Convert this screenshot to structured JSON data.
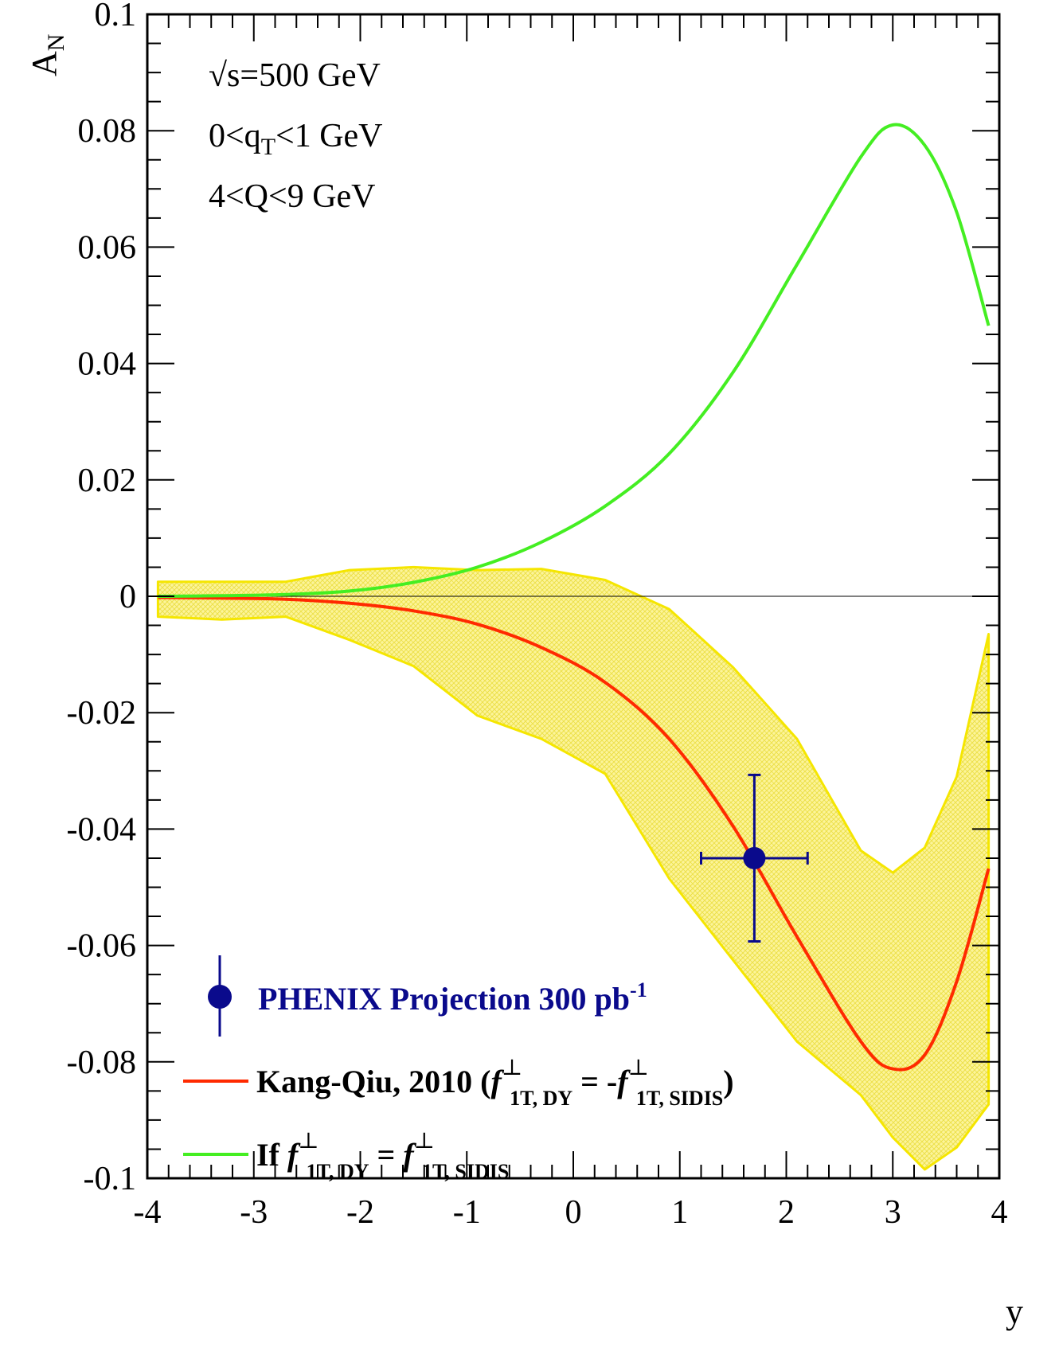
{
  "chart_data": {
    "type": "line",
    "xlabel": "y",
    "ylabel": "A",
    "ylabel_sub": "N",
    "xlim": [
      -4,
      4
    ],
    "ylim": [
      -0.1,
      0.1
    ],
    "x_ticks": [
      -4,
      -3,
      -2,
      -1,
      0,
      1,
      2,
      3,
      4
    ],
    "x_tick_labels": [
      "-4",
      "-3",
      "-2",
      "-1",
      "0",
      "1",
      "2",
      "3",
      "4"
    ],
    "y_ticks": [
      -0.1,
      -0.08,
      -0.06,
      -0.04,
      -0.02,
      0,
      0.02,
      0.04,
      0.06,
      0.08,
      0.1
    ],
    "y_tick_labels": [
      "-0.1",
      "-0.08",
      "-0.06",
      "-0.04",
      "-0.02",
      "0",
      "0.02",
      "0.04",
      "0.06",
      "0.08",
      "0.1"
    ],
    "grid": false,
    "annotations": [
      {
        "text": "√s=500 GeV"
      },
      {
        "text": "0<q",
        "sub": "T",
        "tail": "<1 GeV"
      },
      {
        "text": "4<Q<9 GeV"
      }
    ],
    "band": {
      "color": "#f5e600",
      "fill": "#fbf27a",
      "upper": [
        {
          "x": -3.9,
          "y": 0.0025
        },
        {
          "x": -3.3,
          "y": 0.0025
        },
        {
          "x": -2.7,
          "y": 0.0025
        },
        {
          "x": -2.1,
          "y": 0.0045
        },
        {
          "x": -1.5,
          "y": 0.005
        },
        {
          "x": -0.9,
          "y": 0.0045
        },
        {
          "x": -0.3,
          "y": 0.0047
        },
        {
          "x": 0.3,
          "y": 0.0028
        },
        {
          "x": 0.9,
          "y": -0.0022
        },
        {
          "x": 1.5,
          "y": -0.0122
        },
        {
          "x": 2.1,
          "y": -0.0245
        },
        {
          "x": 2.7,
          "y": -0.0437
        },
        {
          "x": 3.0,
          "y": -0.0475
        },
        {
          "x": 3.3,
          "y": -0.0432
        },
        {
          "x": 3.6,
          "y": -0.031
        },
        {
          "x": 3.9,
          "y": -0.0065
        }
      ],
      "lower": [
        {
          "x": -3.9,
          "y": -0.0035
        },
        {
          "x": -3.3,
          "y": -0.004
        },
        {
          "x": -2.7,
          "y": -0.0035
        },
        {
          "x": -2.1,
          "y": -0.0075
        },
        {
          "x": -1.5,
          "y": -0.012
        },
        {
          "x": -0.9,
          "y": -0.0205
        },
        {
          "x": -0.3,
          "y": -0.0245
        },
        {
          "x": 0.3,
          "y": -0.0305
        },
        {
          "x": 0.9,
          "y": -0.0485
        },
        {
          "x": 1.5,
          "y": -0.0625
        },
        {
          "x": 2.1,
          "y": -0.0765
        },
        {
          "x": 2.7,
          "y": -0.0857
        },
        {
          "x": 3.0,
          "y": -0.093
        },
        {
          "x": 3.3,
          "y": -0.0985
        },
        {
          "x": 3.6,
          "y": -0.0947
        },
        {
          "x": 3.9,
          "y": -0.0873
        }
      ]
    },
    "series": [
      {
        "name": "Kang-Qiu, 2010",
        "color": "#ff2a00",
        "points": [
          {
            "x": -3.9,
            "y": -0.0002
          },
          {
            "x": -3.3,
            "y": -0.0003
          },
          {
            "x": -2.7,
            "y": -0.0005
          },
          {
            "x": -2.1,
            "y": -0.0012
          },
          {
            "x": -1.5,
            "y": -0.0025
          },
          {
            "x": -0.9,
            "y": -0.0048
          },
          {
            "x": -0.3,
            "y": -0.0088
          },
          {
            "x": 0.3,
            "y": -0.0148
          },
          {
            "x": 0.9,
            "y": -0.0245
          },
          {
            "x": 1.5,
            "y": -0.0395
          },
          {
            "x": 2.1,
            "y": -0.0585
          },
          {
            "x": 2.7,
            "y": -0.0765
          },
          {
            "x": 3.0,
            "y": -0.0812
          },
          {
            "x": 3.3,
            "y": -0.0788
          },
          {
            "x": 3.6,
            "y": -0.0662
          },
          {
            "x": 3.9,
            "y": -0.0468
          }
        ]
      },
      {
        "name": "If",
        "color": "#44ee22",
        "points": [
          {
            "x": -3.9,
            "y": 0.0
          },
          {
            "x": -3.3,
            "y": 0.0001
          },
          {
            "x": -2.7,
            "y": 0.0003
          },
          {
            "x": -2.1,
            "y": 0.0009
          },
          {
            "x": -1.5,
            "y": 0.0024
          },
          {
            "x": -0.9,
            "y": 0.005
          },
          {
            "x": -0.3,
            "y": 0.0093
          },
          {
            "x": 0.3,
            "y": 0.0155
          },
          {
            "x": 0.9,
            "y": 0.0245
          },
          {
            "x": 1.5,
            "y": 0.0385
          },
          {
            "x": 2.1,
            "y": 0.057
          },
          {
            "x": 2.7,
            "y": 0.0755
          },
          {
            "x": 3.0,
            "y": 0.081
          },
          {
            "x": 3.3,
            "y": 0.0775
          },
          {
            "x": 3.6,
            "y": 0.066
          },
          {
            "x": 3.9,
            "y": 0.0465
          }
        ]
      }
    ],
    "data_point": {
      "name": "PHENIX Projection 300 pb",
      "sup": "-1",
      "color": "#0a0a8c",
      "x": 1.7,
      "y": -0.045,
      "x_err": 0.5,
      "y_err": 0.0143
    },
    "legend": {
      "placement": "bottom-left",
      "entries": [
        {
          "key": "phenix",
          "text": "PHENIX Projection 300 pb",
          "sup": "-1"
        },
        {
          "key": "kang-qiu",
          "text": "Kang-Qiu, 2010 (",
          "f1": "f",
          "f1_sup": "⊥",
          "f1_sub": "1T, DY",
          "mid": " = -",
          "f2": "f",
          "f2_sup": "⊥",
          "f2_sub": "1T, SIDIS",
          "tail": ")"
        },
        {
          "key": "if",
          "text": "If ",
          "f1": "f",
          "f1_sup": "⊥",
          "f1_sub": "1T, DY",
          "mid": " = ",
          "f2": "f",
          "f2_sup": "⊥",
          "f2_sub": "1T, SIDIS"
        }
      ]
    }
  }
}
